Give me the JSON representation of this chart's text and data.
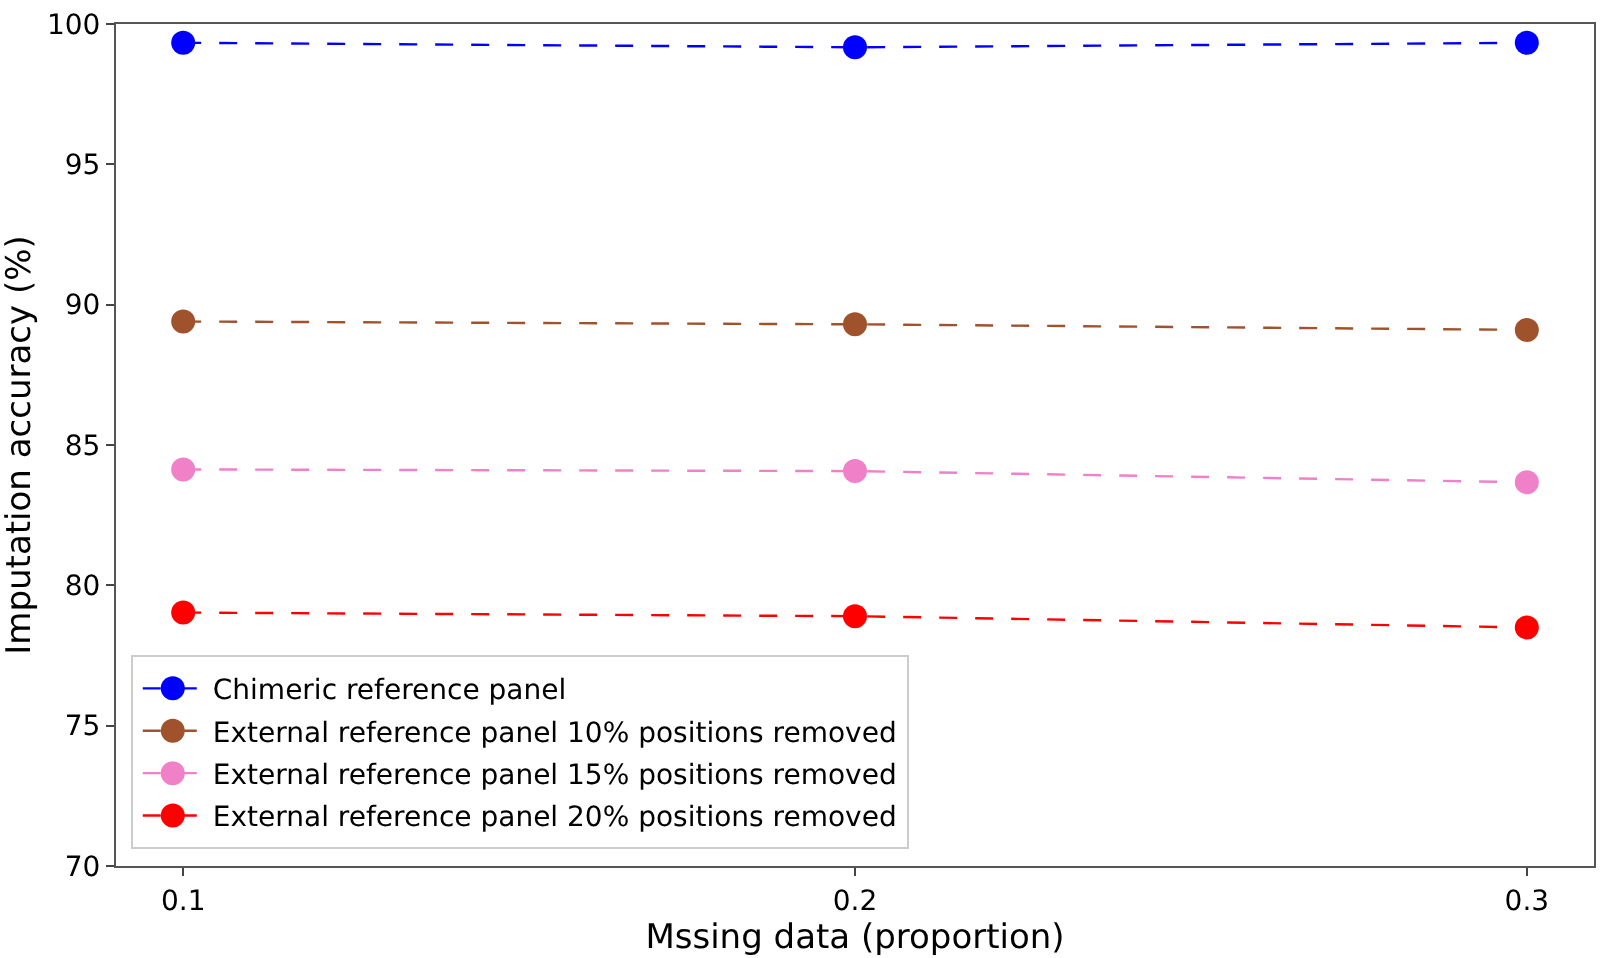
{
  "chart_data": {
    "type": "line",
    "xlabel": "Mssing data (proportion)",
    "ylabel": "Imputation accuracy (%)",
    "x": [
      0.1,
      0.2,
      0.3
    ],
    "series": [
      {
        "name": "Chimeric reference panel",
        "color": "#0000ff",
        "values": [
          99.33,
          99.17,
          99.33
        ]
      },
      {
        "name": "External reference panel 10% positions removed",
        "color": "#a0522d",
        "values": [
          89.4,
          89.3,
          89.1
        ]
      },
      {
        "name": "External reference panel 15% positions removed",
        "color": "#f080c8",
        "values": [
          84.13,
          84.07,
          83.67
        ]
      },
      {
        "name": "External reference panel 20% positions removed",
        "color": "#ff0000",
        "values": [
          79.03,
          78.9,
          78.5
        ]
      }
    ],
    "xlim": [
      0.09,
      0.31
    ],
    "xticks": [
      0.1,
      0.2,
      0.3
    ],
    "ylim": [
      70,
      100
    ],
    "yticks": [
      70,
      75,
      80,
      85,
      90,
      95,
      100
    ],
    "grid": false,
    "legend": "bottom left",
    "marker": "circle",
    "line_style": "dashed"
  }
}
